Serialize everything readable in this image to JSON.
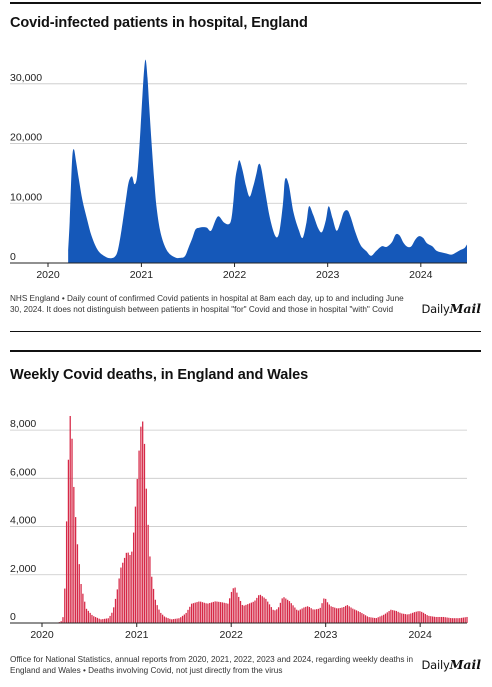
{
  "chart_data": [
    {
      "type": "area",
      "title": "Covid-infected patients in hospital, England",
      "xlabel": "",
      "ylabel": "",
      "ylim": [
        0,
        36000
      ],
      "xlim": [
        "2020-01-01",
        "2024-06-30"
      ],
      "y_ticks": [
        0,
        10000,
        20000,
        30000
      ],
      "y_tick_labels": [
        "0",
        "10,000",
        "20,000",
        "30,000"
      ],
      "x_tick_labels": [
        "2020",
        "2021",
        "2022",
        "2023",
        "2024"
      ],
      "grid": "horizontal",
      "color": "#1558b9",
      "series": [
        {
          "x": [
            "2020-03-20",
            "2020-03-26",
            "2020-04-01",
            "2020-04-06",
            "2020-04-12",
            "2020-04-20",
            "2020-05-01",
            "2020-05-15",
            "2020-06-01",
            "2020-06-20",
            "2020-07-15",
            "2020-08-15",
            "2020-09-05",
            "2020-09-20",
            "2020-10-01",
            "2020-10-15",
            "2020-11-01",
            "2020-11-12",
            "2020-11-25",
            "2020-12-05",
            "2020-12-15",
            "2020-12-25",
            "2021-01-05",
            "2021-01-12",
            "2021-01-18",
            "2021-01-25",
            "2021-02-01",
            "2021-02-10",
            "2021-02-20",
            "2021-03-01",
            "2021-03-15",
            "2021-04-01",
            "2021-04-20",
            "2021-05-15",
            "2021-06-01",
            "2021-06-20",
            "2021-07-05",
            "2021-07-20",
            "2021-08-01",
            "2021-08-15",
            "2021-09-01",
            "2021-09-15",
            "2021-10-01",
            "2021-10-20",
            "2021-11-01",
            "2021-11-20",
            "2021-12-10",
            "2021-12-20",
            "2021-12-28",
            "2022-01-04",
            "2022-01-12",
            "2022-01-20",
            "2022-02-01",
            "2022-02-15",
            "2022-03-01",
            "2022-03-15",
            "2022-03-28",
            "2022-04-05",
            "2022-04-15",
            "2022-05-01",
            "2022-05-20",
            "2022-06-10",
            "2022-06-25",
            "2022-07-10",
            "2022-07-18",
            "2022-08-01",
            "2022-08-20",
            "2022-09-10",
            "2022-09-25",
            "2022-10-10",
            "2022-10-20",
            "2022-11-05",
            "2022-11-25",
            "2022-12-10",
            "2022-12-25",
            "2023-01-05",
            "2023-01-20",
            "2023-02-05",
            "2023-02-20",
            "2023-03-05",
            "2023-03-20",
            "2023-04-01",
            "2023-04-20",
            "2023-05-10",
            "2023-06-01",
            "2023-06-20",
            "2023-07-10",
            "2023-08-01",
            "2023-08-20",
            "2023-09-10",
            "2023-09-25",
            "2023-10-10",
            "2023-10-25",
            "2023-11-10",
            "2023-11-25",
            "2023-12-10",
            "2023-12-25",
            "2024-01-10",
            "2024-01-25",
            "2024-02-15",
            "2024-03-01",
            "2024-03-20",
            "2024-04-10",
            "2024-05-01",
            "2024-05-20",
            "2024-06-05",
            "2024-06-20",
            "2024-06-30"
          ],
          "values": [
            2000,
            7000,
            14000,
            18200,
            19000,
            17000,
            14000,
            10500,
            7500,
            4500,
            2100,
            1000,
            800,
            1100,
            2200,
            5500,
            10500,
            13500,
            14500,
            13200,
            14500,
            20000,
            28000,
            32500,
            34000,
            31000,
            26000,
            20000,
            14000,
            9500,
            5500,
            3000,
            1600,
            900,
            850,
            1100,
            2600,
            4200,
            5600,
            5900,
            6000,
            5900,
            5400,
            7300,
            7800,
            6800,
            6500,
            7500,
            10500,
            14000,
            16000,
            17200,
            15600,
            12900,
            11100,
            12800,
            15000,
            16500,
            16000,
            12000,
            7500,
            4500,
            5100,
            10000,
            14000,
            13200,
            8500,
            5500,
            4200,
            6800,
            9500,
            8100,
            5800,
            5200,
            7200,
            9500,
            7500,
            5400,
            6800,
            8500,
            8800,
            7700,
            5100,
            3000,
            2000,
            1200,
            2000,
            2800,
            2700,
            3500,
            4800,
            4600,
            3400,
            2700,
            2800,
            3900,
            4500,
            4200,
            3300,
            2800,
            2100,
            1800,
            1600,
            1400,
            1800,
            2200,
            2500,
            3100
          ]
        }
      ],
      "source": "NHS England • Daily count of confirmed Covid patients in hospital at 8am each day, up to and including June 30, 2024. It does not distinguish between patients in hospital \"for\" Covid and those in hospital \"with\" Covid"
    },
    {
      "type": "bar",
      "title": "Weekly Covid deaths, in England and Wales",
      "xlabel": "",
      "ylabel": "",
      "ylim": [
        0,
        9000
      ],
      "xlim": [
        "2020-01-01",
        "2024-06-30"
      ],
      "y_ticks": [
        0,
        2000,
        4000,
        6000,
        8000
      ],
      "y_tick_labels": [
        "0",
        "2,000",
        "4,000",
        "6,000",
        "8,000"
      ],
      "x_tick_labels": [
        "2020",
        "2021",
        "2022",
        "2023",
        "2024"
      ],
      "grid": "horizontal",
      "color": "#d62947",
      "series": [
        {
          "x": [
            "2020-03-01",
            "2020-03-20",
            "2020-03-27",
            "2020-04-03",
            "2020-04-10",
            "2020-04-17",
            "2020-04-24",
            "2020-05-01",
            "2020-05-15",
            "2020-06-01",
            "2020-06-20",
            "2020-07-15",
            "2020-08-15",
            "2020-09-15",
            "2020-10-01",
            "2020-10-15",
            "2020-11-01",
            "2020-11-15",
            "2020-11-25",
            "2020-12-05",
            "2020-12-15",
            "2020-12-25",
            "2021-01-05",
            "2021-01-15",
            "2021-01-22",
            "2021-01-29",
            "2021-02-05",
            "2021-02-12",
            "2021-02-19",
            "2021-03-01",
            "2021-03-15",
            "2021-04-01",
            "2021-04-20",
            "2021-05-15",
            "2021-06-15",
            "2021-07-10",
            "2021-08-01",
            "2021-09-01",
            "2021-10-01",
            "2021-11-01",
            "2021-12-01",
            "2021-12-20",
            "2022-01-05",
            "2022-01-15",
            "2022-01-25",
            "2022-02-15",
            "2022-03-10",
            "2022-04-01",
            "2022-04-20",
            "2022-05-15",
            "2022-06-15",
            "2022-07-01",
            "2022-07-20",
            "2022-08-15",
            "2022-09-15",
            "2022-10-10",
            "2022-10-25",
            "2022-11-15",
            "2022-12-10",
            "2022-12-28",
            "2023-01-05",
            "2023-01-20",
            "2023-02-15",
            "2023-03-10",
            "2023-03-25",
            "2023-04-15",
            "2023-05-15",
            "2023-06-15",
            "2023-07-15",
            "2023-08-15",
            "2023-09-10",
            "2023-10-01",
            "2023-10-20",
            "2023-11-15",
            "2023-12-10",
            "2023-12-28",
            "2024-01-10",
            "2024-02-01",
            "2024-03-01",
            "2024-04-01",
            "2024-05-01",
            "2024-06-01",
            "2024-06-30"
          ],
          "values": [
            0,
            100,
            600,
            3500,
            6000,
            8700,
            8300,
            6000,
            3500,
            1500,
            600,
            300,
            150,
            200,
            500,
            1200,
            2300,
            2700,
            3000,
            2800,
            3000,
            4500,
            6300,
            8000,
            8500,
            8000,
            6000,
            4500,
            3000,
            1800,
            900,
            450,
            250,
            150,
            200,
            400,
            800,
            900,
            800,
            900,
            850,
            800,
            1400,
            1500,
            1200,
            700,
            800,
            900,
            1200,
            1000,
            500,
            600,
            1100,
            900,
            500,
            650,
            700,
            550,
            600,
            1100,
            900,
            700,
            600,
            650,
            750,
            600,
            450,
            250,
            200,
            350,
            550,
            500,
            400,
            350,
            450,
            500,
            450,
            300,
            250,
            250,
            200,
            200,
            250
          ]
        }
      ],
      "source": "Office for National Statistics, annual reports from 2020, 2021, 2022, 2023 and 2024, regarding weekly deaths in England and Wales • Deaths involving Covid, not just directly from the virus"
    }
  ],
  "logo": {
    "daily": "Daily",
    "mail": "Mail"
  }
}
